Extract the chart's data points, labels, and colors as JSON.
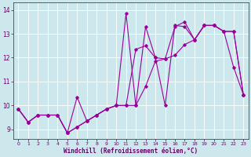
{
  "xlabel": "Windchill (Refroidissement éolien,°C)",
  "xlim": [
    -0.5,
    23.5
  ],
  "ylim": [
    8.6,
    14.3
  ],
  "xticks": [
    0,
    1,
    2,
    3,
    4,
    5,
    6,
    7,
    8,
    9,
    10,
    11,
    12,
    13,
    14,
    15,
    16,
    17,
    18,
    19,
    20,
    21,
    22,
    23
  ],
  "yticks": [
    9,
    10,
    11,
    12,
    13,
    14
  ],
  "bg_color": "#cce8ec",
  "line_color": "#990099",
  "line1_y": [
    9.85,
    9.3,
    9.6,
    9.6,
    9.6,
    8.85,
    9.1,
    9.35,
    9.6,
    9.85,
    10.0,
    13.85,
    10.0,
    13.3,
    12.0,
    10.0,
    13.35,
    13.3,
    12.75,
    13.35,
    13.35,
    13.1,
    11.6,
    10.45
  ],
  "line2_y": [
    9.85,
    9.3,
    9.6,
    9.6,
    9.6,
    8.85,
    9.1,
    9.35,
    9.6,
    9.85,
    10.0,
    10.0,
    10.0,
    10.8,
    11.85,
    11.95,
    12.1,
    12.55,
    12.75,
    13.35,
    13.35,
    13.1,
    13.1,
    10.45
  ],
  "line3_y": [
    9.85,
    9.3,
    9.6,
    9.6,
    9.6,
    8.85,
    10.35,
    9.35,
    9.6,
    9.85,
    10.0,
    10.0,
    12.35,
    12.5,
    12.0,
    11.95,
    13.3,
    13.5,
    12.75,
    13.35,
    13.35,
    13.1,
    13.1,
    10.45
  ]
}
